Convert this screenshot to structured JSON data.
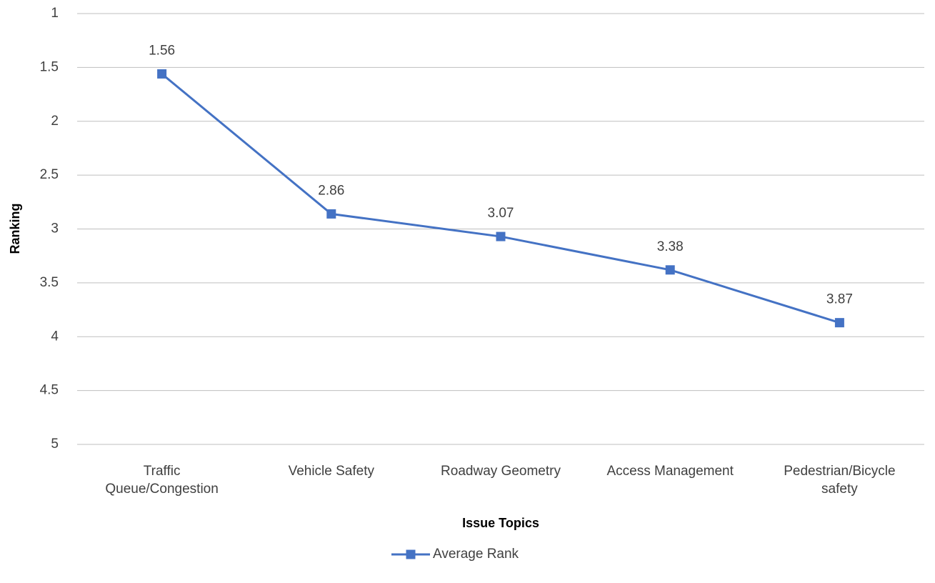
{
  "chart_data": {
    "type": "line",
    "categories": [
      "Traffic Queue/Congestion",
      "Vehicle Safety",
      "Roadway Geometry",
      "Access Management",
      "Pedestrian/Bicycle safety"
    ],
    "series": [
      {
        "name": "Average Rank",
        "color": "#4472c4",
        "values": [
          1.56,
          2.86,
          3.07,
          3.38,
          3.87
        ]
      }
    ],
    "ylim": [
      1,
      5
    ],
    "y_inverted": true,
    "yticks": [
      1,
      1.5,
      2,
      2.5,
      3,
      3.5,
      4,
      4.5,
      5
    ],
    "xlabel": "Issue Topics",
    "ylabel": "Ranking",
    "grid": true,
    "legend": "bottom",
    "data_labels": true
  }
}
